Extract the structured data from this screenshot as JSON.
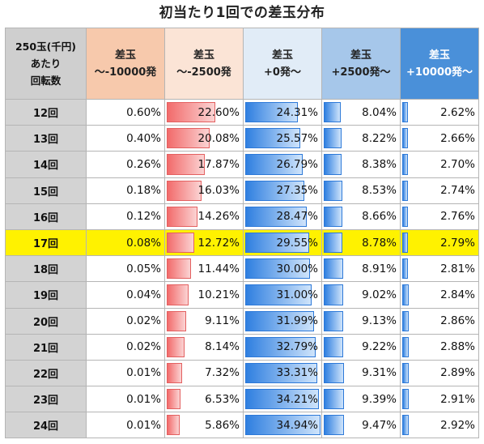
{
  "title": "初当たり1回での差玉分布",
  "header": {
    "row_header": [
      "250玉(千円)",
      "あたり",
      "回転数"
    ],
    "columns": [
      {
        "lines": [
          "差玉",
          "～-10000発"
        ],
        "bar": "none"
      },
      {
        "lines": [
          "差玉",
          "～-2500発"
        ],
        "bar": "red"
      },
      {
        "lines": [
          "差玉",
          "+0発～"
        ],
        "bar": "blue"
      },
      {
        "lines": [
          "差玉",
          "+2500発～"
        ],
        "bar": "blue"
      },
      {
        "lines": [
          "差玉",
          "+10000発～"
        ],
        "bar": "blue"
      }
    ]
  },
  "highlight_row": "17回",
  "rows": [
    {
      "label": "12回",
      "values": [
        "0.60%",
        "22.60%",
        "24.31%",
        "8.04%",
        "2.62%"
      ]
    },
    {
      "label": "13回",
      "values": [
        "0.40%",
        "20.08%",
        "25.57%",
        "8.22%",
        "2.66%"
      ]
    },
    {
      "label": "14回",
      "values": [
        "0.26%",
        "17.87%",
        "26.79%",
        "8.38%",
        "2.70%"
      ]
    },
    {
      "label": "15回",
      "values": [
        "0.18%",
        "16.03%",
        "27.35%",
        "8.53%",
        "2.74%"
      ]
    },
    {
      "label": "16回",
      "values": [
        "0.12%",
        "14.26%",
        "28.47%",
        "8.66%",
        "2.76%"
      ]
    },
    {
      "label": "17回",
      "values": [
        "0.08%",
        "12.72%",
        "29.55%",
        "8.78%",
        "2.79%"
      ]
    },
    {
      "label": "18回",
      "values": [
        "0.05%",
        "11.44%",
        "30.00%",
        "8.91%",
        "2.81%"
      ]
    },
    {
      "label": "19回",
      "values": [
        "0.04%",
        "10.21%",
        "31.00%",
        "9.02%",
        "2.84%"
      ]
    },
    {
      "label": "20回",
      "values": [
        "0.02%",
        "9.11%",
        "31.99%",
        "9.13%",
        "2.86%"
      ]
    },
    {
      "label": "21回",
      "values": [
        "0.02%",
        "8.14%",
        "32.79%",
        "9.22%",
        "2.88%"
      ]
    },
    {
      "label": "22回",
      "values": [
        "0.01%",
        "7.32%",
        "33.31%",
        "9.31%",
        "2.89%"
      ]
    },
    {
      "label": "23回",
      "values": [
        "0.01%",
        "6.53%",
        "34.21%",
        "9.39%",
        "2.91%"
      ]
    },
    {
      "label": "24回",
      "values": [
        "0.01%",
        "5.86%",
        "34.94%",
        "9.47%",
        "2.92%"
      ]
    }
  ]
}
